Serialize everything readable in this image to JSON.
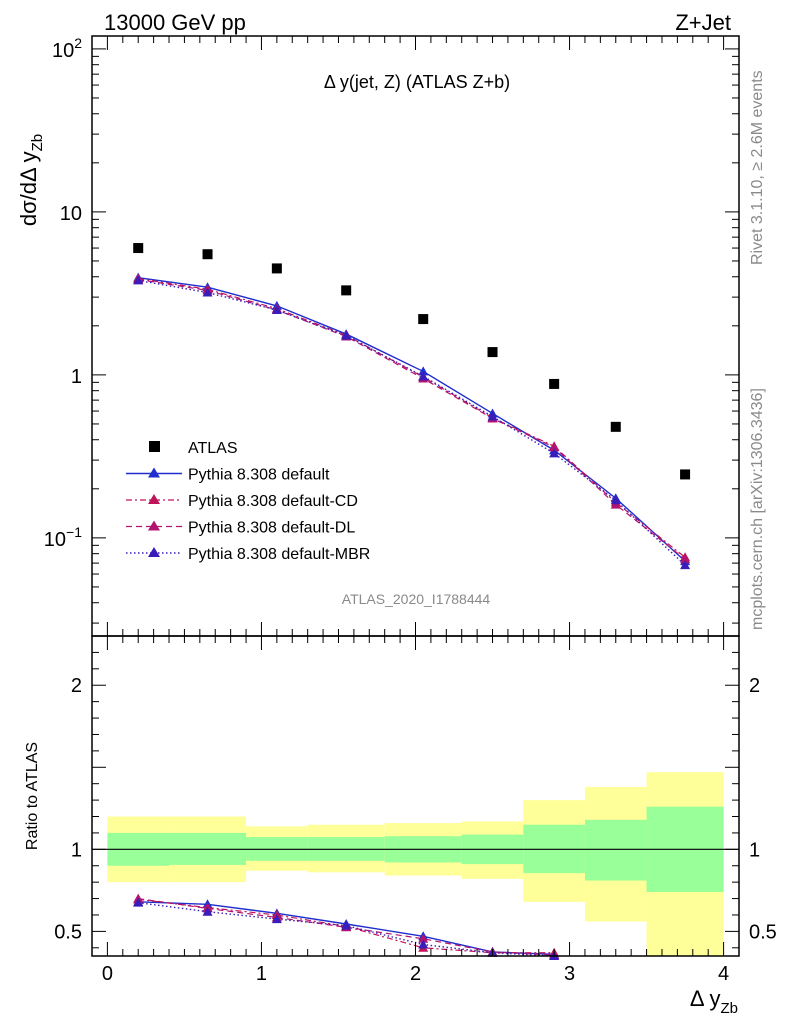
{
  "header": {
    "left": "13000 GeV pp",
    "right": "Z+Jet"
  },
  "main": {
    "title": "Δ y(jet, Z) (ATLAS Z+b)",
    "ylabel": "dσ/dΔ y",
    "ylabel_sub": "Zb",
    "analysis_tag": "ATLAS_2020_I1788444"
  },
  "side": {
    "rivet": "Rivet 3.1.10, ≥ 2.6M events",
    "mcplots": "mcplots.cern.ch [arXiv:1306.3436]"
  },
  "ratio": {
    "ylabel": "Ratio to ATLAS"
  },
  "xaxis": {
    "label": "Δ y",
    "label_sub": "Zb"
  },
  "legend": [
    {
      "key": "atlas",
      "label": "ATLAS"
    },
    {
      "key": "default",
      "label": "Pythia 8.308 default"
    },
    {
      "key": "cd",
      "label": "Pythia 8.308 default-CD"
    },
    {
      "key": "dl",
      "label": "Pythia 8.308 default-DL"
    },
    {
      "key": "mbr",
      "label": "Pythia 8.308 default-MBR"
    }
  ],
  "colors": {
    "atlas": "#000000",
    "default": "#1f2ecc",
    "cd": "#c0145a",
    "dl": "#b01470",
    "mbr": "#3a1cb8",
    "band_inner": "#99ff99",
    "band_outer": "#ffff99"
  },
  "chart_data": [
    {
      "type": "scatter",
      "yscale": "log",
      "xlim": [
        -0.1,
        4.1
      ],
      "ylim": [
        0.025,
        120
      ],
      "yticks": [
        {
          "value": 100,
          "base": "10",
          "exp": "2"
        },
        {
          "value": 10,
          "base": "10",
          "exp": ""
        },
        {
          "value": 1,
          "base": "1",
          "exp": ""
        },
        {
          "value": 0.1,
          "base": "10",
          "exp": "−1"
        }
      ],
      "x": [
        0.2,
        0.65,
        1.1,
        1.55,
        2.05,
        2.5,
        2.9,
        3.3,
        3.75
      ],
      "series": [
        {
          "key": "atlas",
          "name": "ATLAS",
          "values": [
            6.0,
            5.5,
            4.5,
            3.3,
            2.2,
            1.38,
            0.88,
            0.48,
            0.245
          ]
        },
        {
          "key": "default",
          "name": "Pythia 8.308 default",
          "values": [
            3.95,
            3.45,
            2.65,
            1.78,
            1.05,
            0.58,
            0.345,
            0.175,
            0.072
          ]
        },
        {
          "key": "cd",
          "name": "Pythia 8.308 default-CD",
          "values": [
            3.9,
            3.35,
            2.55,
            1.75,
            0.97,
            0.545,
            0.365,
            0.165,
            0.076
          ]
        },
        {
          "key": "dl",
          "name": "Pythia 8.308 default-DL",
          "values": [
            3.85,
            3.3,
            2.5,
            1.72,
            0.95,
            0.54,
            0.36,
            0.16,
            0.074
          ]
        },
        {
          "key": "mbr",
          "name": "Pythia 8.308 default-MBR",
          "values": [
            3.8,
            3.2,
            2.5,
            1.74,
            0.98,
            0.555,
            0.33,
            0.17,
            0.068
          ]
        }
      ]
    },
    {
      "type": "scatter",
      "ylim": [
        0.35,
        2.3
      ],
      "yticks": [
        0.5,
        1,
        2
      ],
      "ytick_labels": [
        "0.5",
        "1",
        "2"
      ],
      "xticks": [
        0,
        1,
        2,
        3,
        4
      ],
      "xtick_labels": [
        "0",
        "1",
        "2",
        "3",
        "4"
      ],
      "bins": [
        [
          0.0,
          0.4
        ],
        [
          0.4,
          0.9
        ],
        [
          0.9,
          1.3
        ],
        [
          1.3,
          1.8
        ],
        [
          1.8,
          2.3
        ],
        [
          2.3,
          2.7
        ],
        [
          2.7,
          3.1
        ],
        [
          3.1,
          3.5
        ],
        [
          3.5,
          4.0
        ]
      ],
      "band_inner": [
        [
          0.9,
          1.1
        ],
        [
          0.905,
          1.1
        ],
        [
          0.93,
          1.075
        ],
        [
          0.93,
          1.075
        ],
        [
          0.92,
          1.08
        ],
        [
          0.91,
          1.09
        ],
        [
          0.855,
          1.15
        ],
        [
          0.81,
          1.18
        ],
        [
          0.74,
          1.26
        ]
      ],
      "band_outer": [
        [
          0.8,
          1.2
        ],
        [
          0.8,
          1.2
        ],
        [
          0.87,
          1.14
        ],
        [
          0.86,
          1.15
        ],
        [
          0.84,
          1.16
        ],
        [
          0.82,
          1.17
        ],
        [
          0.68,
          1.3
        ],
        [
          0.56,
          1.38
        ],
        [
          0.35,
          1.47
        ]
      ],
      "x": [
        0.2,
        0.65,
        1.1,
        1.55,
        2.05,
        2.5,
        2.9
      ],
      "series": [
        {
          "key": "default",
          "name": "Pythia 8.308 default",
          "values": [
            0.68,
            0.665,
            0.61,
            0.545,
            0.47,
            0.375,
            0.36
          ]
        },
        {
          "key": "cd",
          "name": "Pythia 8.308 default-CD",
          "values": [
            0.695,
            0.645,
            0.6,
            0.53,
            0.4,
            0.37,
            0.37
          ]
        },
        {
          "key": "dl",
          "name": "Pythia 8.308 default-DL",
          "values": [
            0.7,
            0.64,
            0.585,
            0.525,
            0.455,
            0.375,
            0.355
          ]
        },
        {
          "key": "mbr",
          "name": "Pythia 8.308 default-MBR",
          "values": [
            0.675,
            0.62,
            0.575,
            0.535,
            0.42,
            0.37,
            0.35
          ]
        }
      ]
    }
  ]
}
